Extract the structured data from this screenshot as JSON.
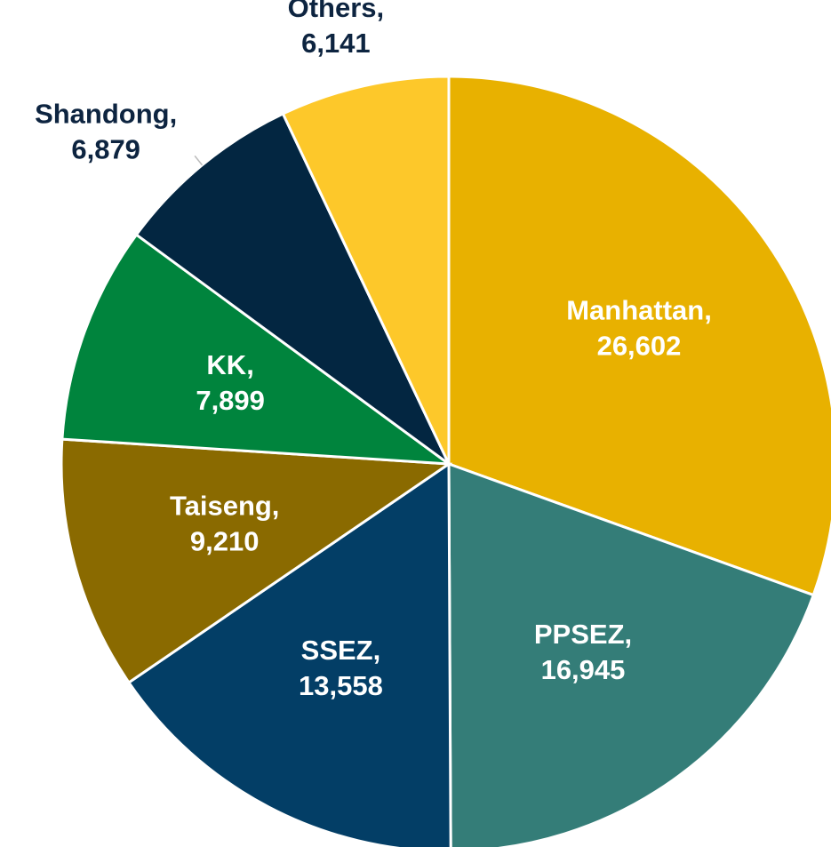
{
  "chart_data": {
    "type": "pie",
    "categories": [
      "Manhattan,",
      "PPSEZ,",
      "SSEZ,",
      "Taiseng,",
      "KK,",
      "Shandong,",
      "Others,"
    ],
    "values": [
      26602,
      16945,
      13558,
      9210,
      7899,
      6879,
      6141
    ],
    "value_labels": [
      "26,602",
      "16,945",
      "13,558",
      "9,210",
      "7,899",
      "6,879",
      "6,141"
    ],
    "colors": [
      "#E8B100",
      "#347D78",
      "#033E66",
      "#8A6A00",
      "#00843D",
      "#032641",
      "#FDC82A"
    ]
  }
}
